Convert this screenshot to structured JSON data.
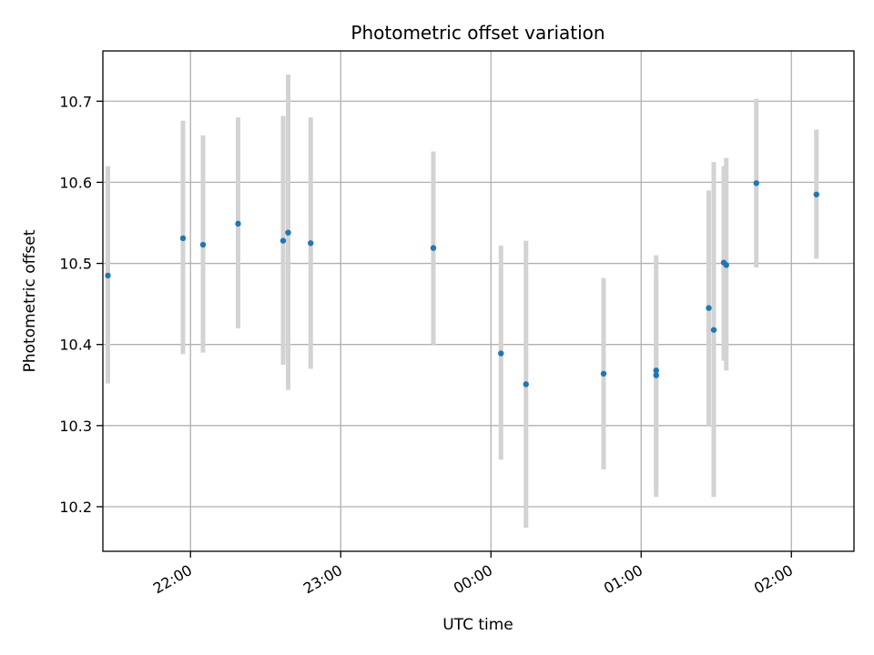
{
  "chart_data": {
    "type": "scatter",
    "title": "Photometric offset variation",
    "xlabel": "UTC time",
    "ylabel": "Photometric offset",
    "x_tick_labels": [
      "22:00",
      "23:00",
      "00:00",
      "01:00",
      "02:00"
    ],
    "y_tick_labels": [
      "10.2",
      "10.3",
      "10.4",
      "10.5",
      "10.6",
      "10.7"
    ],
    "x_ticks": [
      "22:00",
      "23:00",
      "00:00",
      "01:00",
      "02:00"
    ],
    "y_ticks": [
      10.2,
      10.3,
      10.4,
      10.5,
      10.6,
      10.7
    ],
    "xlim": [
      "21:25",
      "02:25"
    ],
    "ylim": [
      10.145,
      10.762
    ],
    "grid": true,
    "point_color": "#1f77b4",
    "errorbar_color": "#d3d3d3",
    "points": [
      {
        "x": "21:27",
        "y": 10.485,
        "err_low": 10.352,
        "err_high": 10.62
      },
      {
        "x": "21:57",
        "y": 10.531,
        "err_low": 10.388,
        "err_high": 10.676
      },
      {
        "x": "22:05",
        "y": 10.523,
        "err_low": 10.39,
        "err_high": 10.658
      },
      {
        "x": "22:19",
        "y": 10.549,
        "err_low": 10.42,
        "err_high": 10.68
      },
      {
        "x": "22:37",
        "y": 10.528,
        "err_low": 10.375,
        "err_high": 10.682
      },
      {
        "x": "22:39",
        "y": 10.538,
        "err_low": 10.344,
        "err_high": 10.733
      },
      {
        "x": "22:48",
        "y": 10.525,
        "err_low": 10.37,
        "err_high": 10.68
      },
      {
        "x": "23:37",
        "y": 10.519,
        "err_low": 10.4,
        "err_high": 10.638
      },
      {
        "x": "00:04",
        "y": 10.389,
        "err_low": 10.258,
        "err_high": 10.522
      },
      {
        "x": "00:14",
        "y": 10.351,
        "err_low": 10.174,
        "err_high": 10.528
      },
      {
        "x": "00:45",
        "y": 10.364,
        "err_low": 10.246,
        "err_high": 10.482
      },
      {
        "x": "01:06",
        "y": 10.368,
        "err_low": 10.226,
        "err_high": 10.51
      },
      {
        "x": "01:06",
        "y": 10.362,
        "err_low": 10.212,
        "err_high": 10.48
      },
      {
        "x": "01:27",
        "y": 10.445,
        "err_low": 10.3,
        "err_high": 10.59
      },
      {
        "x": "01:29",
        "y": 10.418,
        "err_low": 10.212,
        "err_high": 10.625
      },
      {
        "x": "01:33",
        "y": 10.501,
        "err_low": 10.38,
        "err_high": 10.62
      },
      {
        "x": "01:34",
        "y": 10.498,
        "err_low": 10.368,
        "err_high": 10.63
      },
      {
        "x": "01:46",
        "y": 10.599,
        "err_low": 10.495,
        "err_high": 10.703
      },
      {
        "x": "02:10",
        "y": 10.585,
        "err_low": 10.506,
        "err_high": 10.665
      }
    ]
  }
}
